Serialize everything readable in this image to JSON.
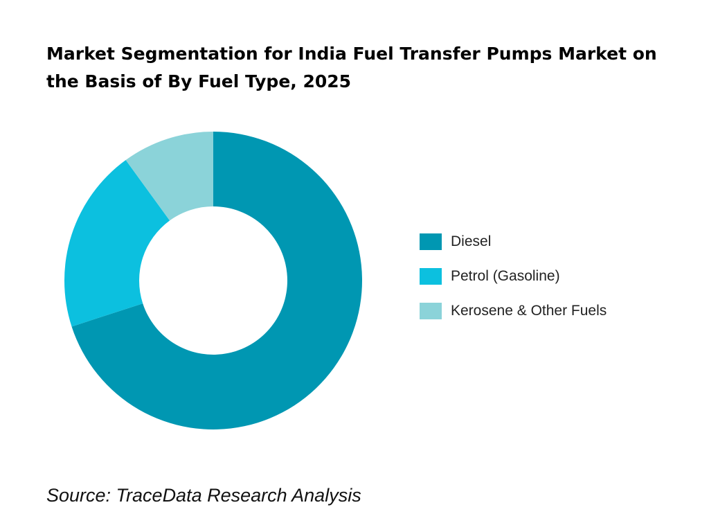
{
  "chart_data": {
    "type": "pie",
    "donut": true,
    "title": "Market Segmentation for India Fuel Transfer Pumps Market on the Basis of  By Fuel Type, 2025",
    "categories": [
      "Diesel",
      "Petrol (Gasoline)",
      "Kerosene & Other Fuels"
    ],
    "values": [
      70,
      20,
      10
    ],
    "unit": "%",
    "colors": [
      "#0097B2",
      "#0CC0DF",
      "#8BD3D9"
    ],
    "legend_position": "right",
    "start_angle": "top, clockwise"
  },
  "source": "Source: TraceData Research Analysis"
}
